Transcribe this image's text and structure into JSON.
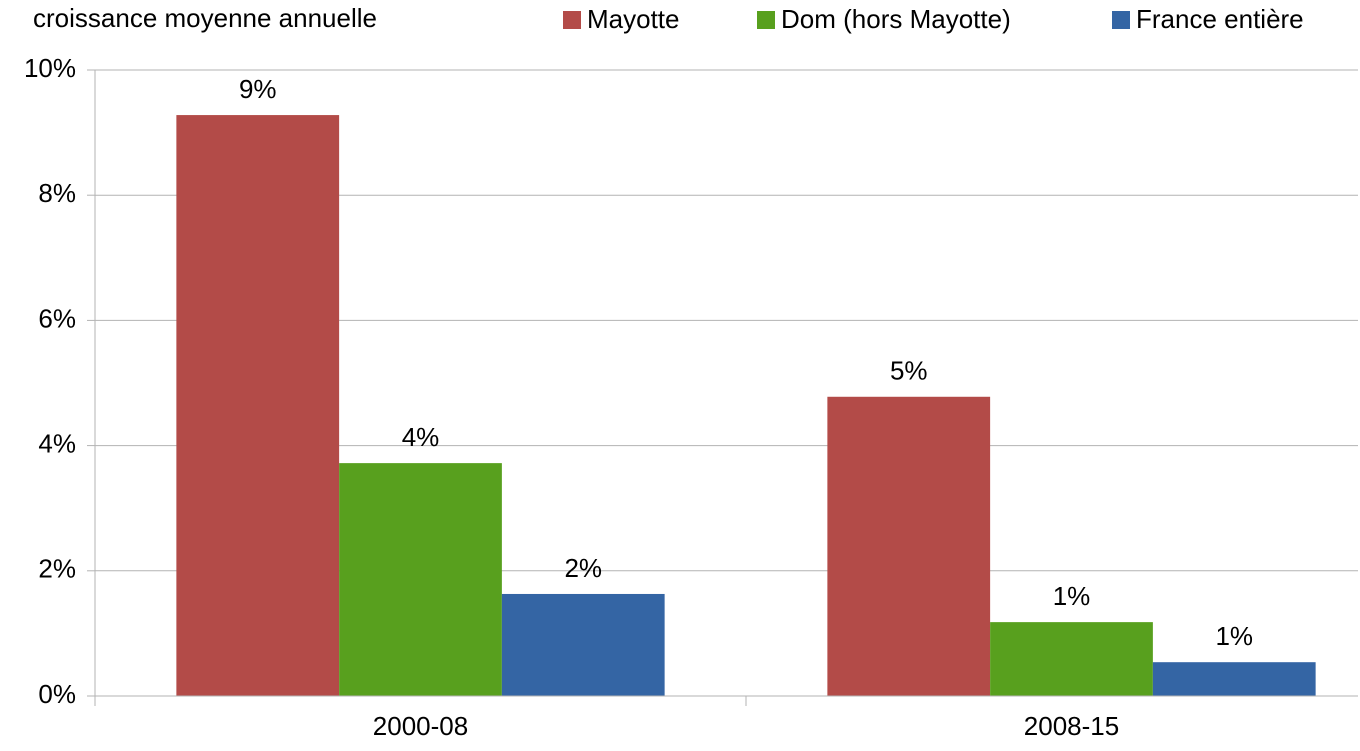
{
  "chart_data": {
    "type": "bar",
    "y_label": "croissance moyenne annuelle",
    "categories": [
      "2000-08",
      "2008-15"
    ],
    "series": [
      {
        "name": "Mayotte",
        "color": "#b34b48",
        "values": [
          9.28,
          4.78
        ],
        "value_labels": [
          "9%",
          "5%"
        ]
      },
      {
        "name": "Dom (hors Mayotte)",
        "color": "#58a01e",
        "values": [
          3.72,
          1.18
        ],
        "value_labels": [
          "4%",
          "1%"
        ]
      },
      {
        "name": "France entière",
        "color": "#3465a4",
        "values": [
          1.63,
          0.54
        ],
        "value_labels": [
          "2%",
          "1%"
        ]
      }
    ],
    "ylim": [
      0,
      10
    ],
    "yticks": [
      {
        "value": 0,
        "label": "0%"
      },
      {
        "value": 2,
        "label": "2%"
      },
      {
        "value": 4,
        "label": "4%"
      },
      {
        "value": 6,
        "label": "6%"
      },
      {
        "value": 8,
        "label": "8%"
      },
      {
        "value": 10,
        "label": "10%"
      }
    ],
    "grid": true,
    "legend": "top-right"
  }
}
